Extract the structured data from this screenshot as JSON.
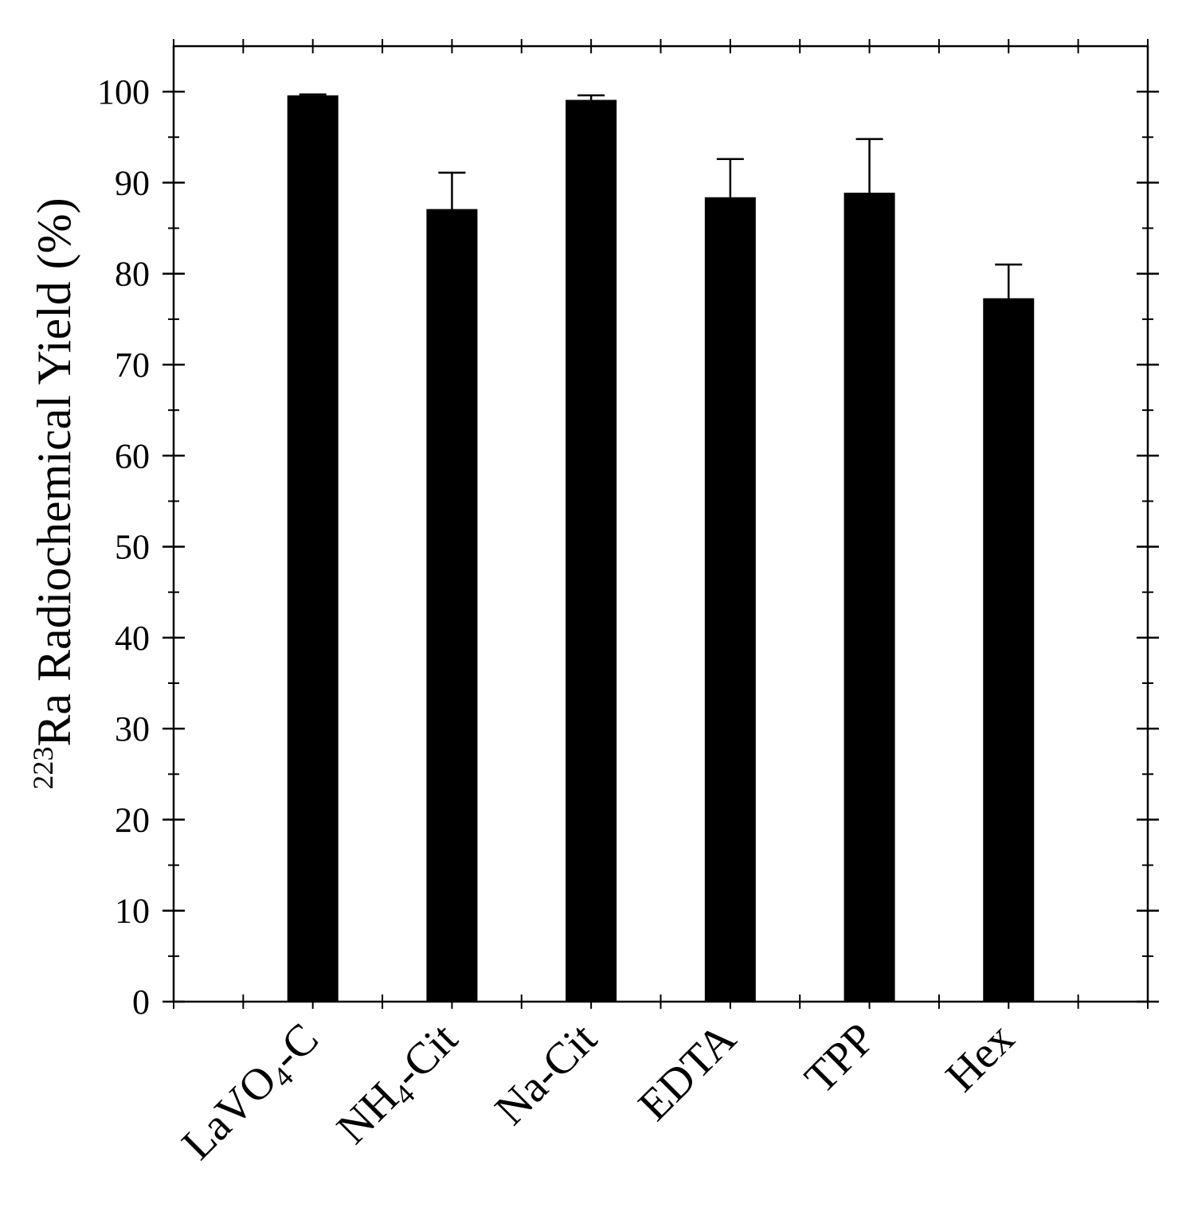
{
  "chart_data": {
    "type": "bar",
    "categories": [
      "LaVO4-C",
      "NH4-Cit",
      "Na-Cit",
      "EDTA",
      "TPP",
      "Hex"
    ],
    "category_labels": [
      {
        "main": "LaVO",
        "sub": "4",
        "rest": "-C"
      },
      {
        "main": "NH",
        "sub": "4",
        "rest": "-Cit"
      },
      {
        "main": "Na-Cit",
        "sub": "",
        "rest": ""
      },
      {
        "main": "EDTA",
        "sub": "",
        "rest": ""
      },
      {
        "main": "TPP",
        "sub": "",
        "rest": ""
      },
      {
        "main": "Hex",
        "sub": "",
        "rest": ""
      }
    ],
    "values": [
      99.6,
      87.1,
      99.1,
      88.4,
      88.9,
      77.3
    ],
    "error_upper": [
      0.1,
      4.0,
      0.5,
      4.2,
      5.9,
      3.7
    ],
    "title": "",
    "xlabel": "",
    "ylabel": {
      "superscript": "223",
      "text": "Ra Radiochemical Yield (%)"
    },
    "ylim": [
      0,
      105
    ],
    "yticks": [
      "0",
      "10",
      "20",
      "30",
      "40",
      "50",
      "60",
      "70",
      "80",
      "90",
      "100"
    ],
    "grid": false,
    "legend": "none",
    "bar_color": "#000000"
  }
}
